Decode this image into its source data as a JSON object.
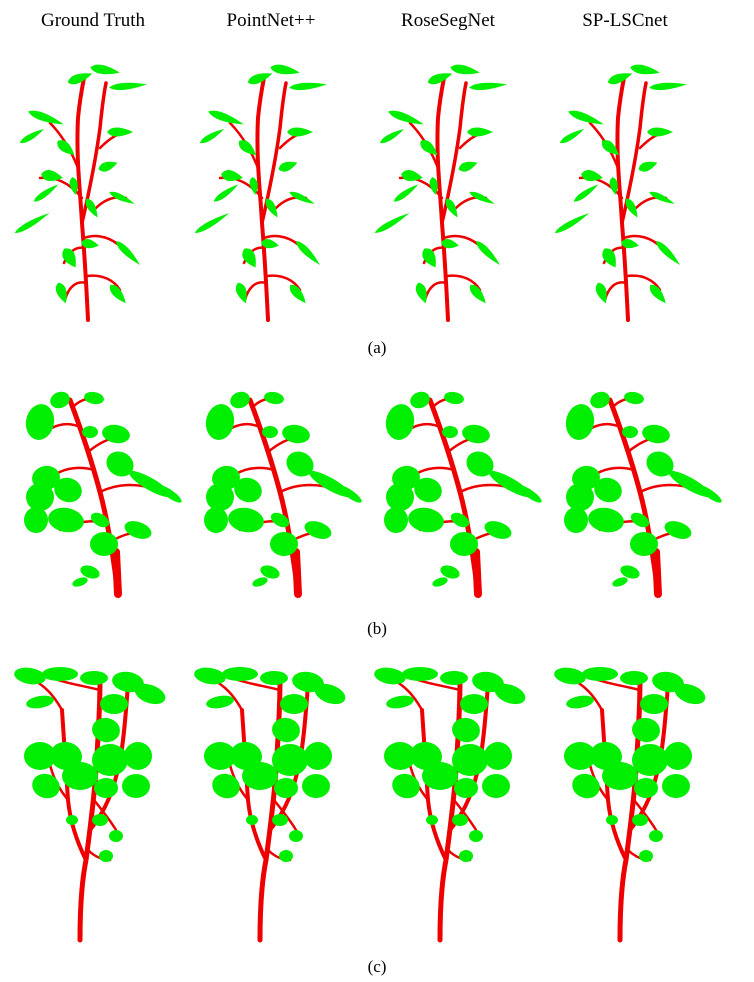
{
  "figure": {
    "column_titles": [
      "Ground Truth",
      "PointNet++",
      "RoseSegNet",
      "SP-LSCnet"
    ],
    "row_labels": [
      "(a)",
      "(b)",
      "(c)"
    ],
    "colors": {
      "stem": "#ee0000",
      "leaf": "#00ee00",
      "background": "#ffffff"
    },
    "legend_semantics": {
      "stem_color_meaning": "stem (red)",
      "leaf_color_meaning": "leaf (green)"
    }
  }
}
